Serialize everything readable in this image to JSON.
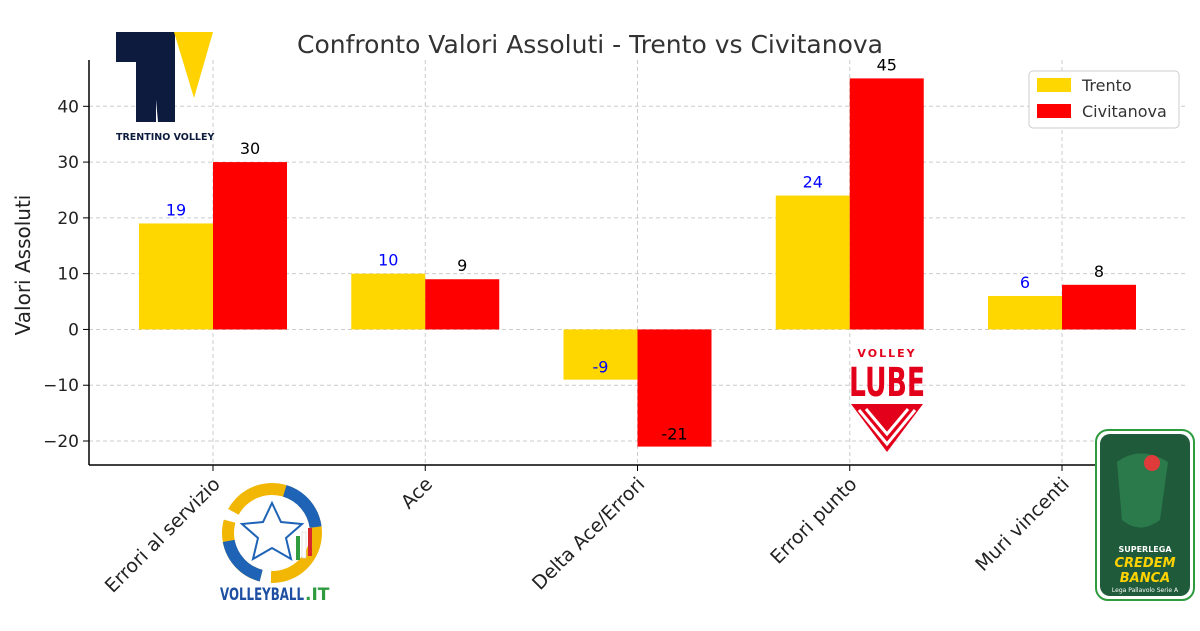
{
  "chart_data": {
    "type": "bar",
    "title": "Confronto Valori Assoluti - Trento vs Civitanova",
    "xlabel": "",
    "ylabel": "Valori Assoluti",
    "categories": [
      "Errori al servizio",
      "Ace",
      "Delta Ace/Errori",
      "Errori punto",
      "Muri vincenti"
    ],
    "series": [
      {
        "name": "Trento",
        "values": [
          19,
          10,
          -9,
          24,
          6
        ],
        "color": "#FFD700",
        "label_color": "#0000ff"
      },
      {
        "name": "Civitanova",
        "values": [
          30,
          9,
          -21,
          45,
          8
        ],
        "color": "#FF0000",
        "label_color": "#000000"
      }
    ],
    "ylim": [
      -24.3,
      48.3
    ],
    "yticks": [
      -20,
      -10,
      0,
      10,
      20,
      30,
      40
    ],
    "ytick_labels": [
      "−20",
      "−10",
      "0",
      "10",
      "20",
      "30",
      "40"
    ],
    "grid": true,
    "legend_position": "top-right"
  },
  "logos": {
    "trentino": {
      "text": "TRENTINO VOLLEY"
    },
    "lube": {
      "top": "VOLLEY",
      "main": "LUBE"
    },
    "volleyball_it": {
      "text_main": "VOLLEYBALL",
      "text_suffix": ".IT"
    },
    "superlega": {
      "line1": "SUPERLEGA",
      "line2": "CREDEM",
      "line3": "BANCA",
      "line4": "Lega Pallavolo Serie A"
    }
  },
  "colors": {
    "trento": "#FFD700",
    "civitanova": "#FF0000",
    "grid": "#cccccc",
    "navy": "#0d1b3e",
    "lube_red": "#e3001b",
    "superlega_green": "#1f5a3a"
  }
}
